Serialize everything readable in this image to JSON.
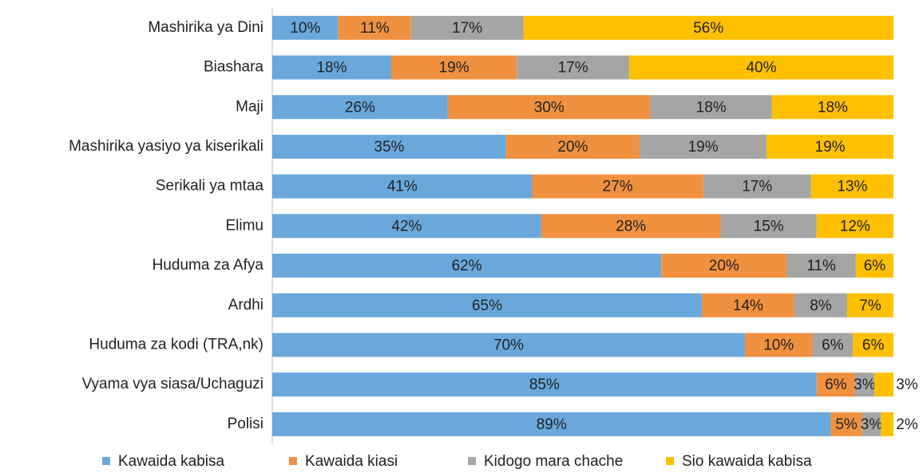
{
  "chart_data": {
    "type": "bar",
    "orientation": "horizontal",
    "stack": "percent",
    "categories": [
      "Mashirika ya Dini",
      "Biashara",
      "Maji",
      "Mashirika yasiyo ya kiserikali",
      "Serikali ya mtaa",
      "Elimu",
      "Huduma za Afya",
      "Ardhi",
      "Huduma za kodi (TRA,nk)",
      "Vyama vya siasa/Uchaguzi",
      "Polisi"
    ],
    "series": [
      {
        "name": "Kawaida kabisa",
        "color": "#6aa8dc",
        "values": [
          10,
          18,
          26,
          35,
          41,
          42,
          62,
          65,
          70,
          85,
          89
        ],
        "value_labels": [
          "10%",
          "18%",
          "26%",
          "35%",
          "41%",
          "42%",
          "62%",
          "65%",
          "70%",
          "85%",
          "89%"
        ]
      },
      {
        "name": "Kawaida kiasi",
        "color": "#f0913f",
        "values": [
          11,
          19,
          30,
          20,
          27,
          28,
          20,
          14,
          10,
          6,
          5
        ],
        "value_labels": [
          "11%",
          "19%",
          "30%",
          "20%",
          "27%",
          "28%",
          "20%",
          "14%",
          "10%",
          "6%",
          "5%"
        ]
      },
      {
        "name": "Kidogo mara chache",
        "color": "#a5a5a5",
        "values": [
          17,
          17,
          18,
          19,
          17,
          15,
          11,
          8,
          6,
          3,
          3
        ],
        "value_labels": [
          "17%",
          "17%",
          "18%",
          "19%",
          "17%",
          "15%",
          "11%",
          "8%",
          "6%",
          "3%",
          "3%"
        ]
      },
      {
        "name": "Sio kawaida kabisa",
        "color": "#ffc000",
        "values": [
          56,
          40,
          18,
          19,
          13,
          12,
          6,
          7,
          6,
          3,
          2
        ],
        "value_labels": [
          "56%",
          "40%",
          "18%",
          "19%",
          "13%",
          "12%",
          "6%",
          "7%",
          "6%",
          "3%",
          "2%"
        ]
      }
    ],
    "legend": "bottom"
  }
}
